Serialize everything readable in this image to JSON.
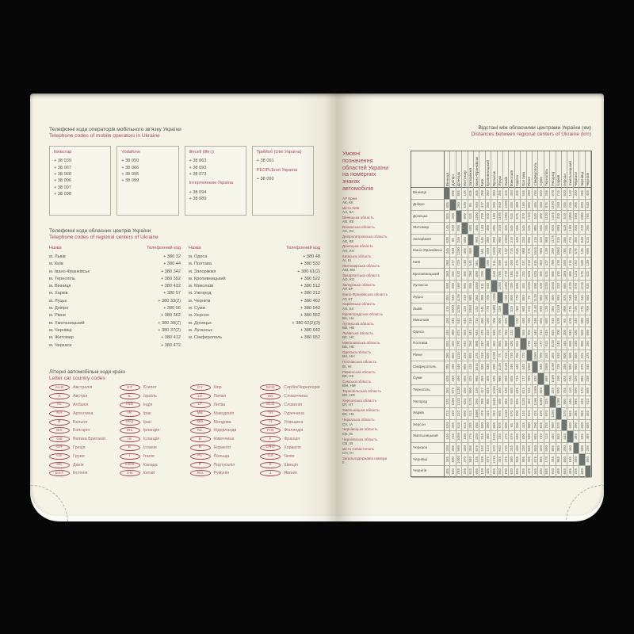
{
  "colors": {
    "accent_red": "#a4455a",
    "page_cream": "#f5f3e6",
    "diagonal_gray": "#6e746f",
    "text_dark": "#4e4c45"
  },
  "left_page": {
    "mobile": {
      "title_ua": "Телефонні коди операторів мобільного зв'язку України",
      "title_en": "Telephone codes of mobile operators in Ukraine",
      "operators": [
        {
          "name": "Київстар",
          "codes": [
            "+ 38 039",
            "+ 38 067",
            "+ 38 068",
            "+ 38 096",
            "+ 38 097",
            "+ 38 098"
          ]
        },
        {
          "name": "Vodafone",
          "codes": [
            "+ 38 050",
            "+ 38 066",
            "+ 38 095",
            "+ 38 099"
          ]
        },
        {
          "name": "lifecell (life:))",
          "codes": [
            "+ 38 063",
            "+ 38 093",
            "+ 38 073"
          ],
          "name2": "Інтертелеком Україна",
          "codes2": [
            "+ 38 094",
            "+ 38 089"
          ]
        },
        {
          "name": "ТриМоб (Utel Україна)",
          "codes": [
            "+ 38 091"
          ],
          "name2": "PEOPLEnet Україна",
          "codes2": [
            "+ 38 092"
          ]
        }
      ]
    },
    "regional": {
      "title_ua": "Телефонні коди обласних центрів України",
      "title_en": "Telephone codes of regional centers of Ukraine",
      "col_name": "Назва",
      "col_code": "Телефонний код",
      "left_rows": [
        [
          "м. Львів",
          "+ 380 32"
        ],
        [
          "м. Київ",
          "+ 380 44"
        ],
        [
          "м. Івано-Франківськ",
          "+ 380 342"
        ],
        [
          "м. Тернопіль",
          "+ 380 352"
        ],
        [
          "м. Вінниця",
          "+ 380 432"
        ],
        [
          "м. Харків",
          "+ 380 57"
        ],
        [
          "м. Луцьк",
          "+ 380 33(2)"
        ],
        [
          "м. Дніпро",
          "+ 380 56"
        ],
        [
          "м. Рівне",
          "+ 380 362"
        ],
        [
          "м. Хмельницький",
          "+ 380 38(2)"
        ],
        [
          "м. Чернівці",
          "+ 380 37(2)"
        ],
        [
          "м. Житомир",
          "+ 380 412"
        ],
        [
          "м. Черкаси",
          "+ 380 472"
        ]
      ],
      "right_rows": [
        [
          "м. Одеса",
          "+ 380 48"
        ],
        [
          "м. Полтава",
          "+ 380 532"
        ],
        [
          "м. Запоріжжя",
          "+ 380 61(2)"
        ],
        [
          "м. Кропивницький",
          "+ 380 522"
        ],
        [
          "м. Миколаїв",
          "+ 380 512"
        ],
        [
          "м. Ужгород",
          "+ 380 312"
        ],
        [
          "м. Чернігів",
          "+ 380 462"
        ],
        [
          "м. Суми",
          "+ 380 542"
        ],
        [
          "м. Херсон",
          "+ 380 552"
        ],
        [
          "м. Донецьк",
          "+ 380 62(2)(3)"
        ],
        [
          "м. Луганськ",
          "+ 380 642"
        ],
        [
          "м. Сімферополь",
          "+ 380 652"
        ]
      ]
    },
    "car_codes": {
      "title_ua": "Літерні автомобільні коди країн",
      "title_en": "Letter car country codes",
      "columns": [
        [
          {
            "code": "AUS",
            "country": "Австралія"
          },
          {
            "code": "A",
            "country": "Австрія"
          },
          {
            "code": "AL",
            "country": "Албанія"
          },
          {
            "code": "RA",
            "country": "Аргентина"
          },
          {
            "code": "B",
            "country": "Бельгія"
          },
          {
            "code": "BG",
            "country": "Болгарія"
          },
          {
            "code": "GB",
            "country": "Велика Британія"
          },
          {
            "code": "GR",
            "country": "Греція"
          },
          {
            "code": "GE",
            "country": "Грузія"
          },
          {
            "code": "DK",
            "country": "Данія"
          },
          {
            "code": "EST",
            "country": "Естонія"
          }
        ],
        [
          {
            "code": "ET",
            "country": "Єгипет"
          },
          {
            "code": "IL",
            "country": "Ізраїль"
          },
          {
            "code": "IND",
            "country": "Індія"
          },
          {
            "code": "IR",
            "country": "Ірак"
          },
          {
            "code": "IRQ",
            "country": "Іран"
          },
          {
            "code": "IRL",
            "country": "Ірландія"
          },
          {
            "code": "IS",
            "country": "Ісландія"
          },
          {
            "code": "E",
            "country": "Іспанія"
          },
          {
            "code": "I",
            "country": "Італія"
          },
          {
            "code": "CDN",
            "country": "Канада"
          },
          {
            "code": "CN",
            "country": "Китай"
          }
        ],
        [
          {
            "code": "CY",
            "country": "Кіпр"
          },
          {
            "code": "LV",
            "country": "Латвія"
          },
          {
            "code": "LT",
            "country": "Литва"
          },
          {
            "code": "MK",
            "country": "Македонія"
          },
          {
            "code": "MD",
            "country": "Молдова"
          },
          {
            "code": "NL",
            "country": "Нідерланди"
          },
          {
            "code": "D",
            "country": "Німеччина"
          },
          {
            "code": "N",
            "country": "Норвегія"
          },
          {
            "code": "PL",
            "country": "Польща"
          },
          {
            "code": "P",
            "country": "Португалія"
          },
          {
            "code": "RO",
            "country": "Румунія"
          }
        ],
        [
          {
            "code": "SCG",
            "country": "Сербія/Чорногорія"
          },
          {
            "code": "SK",
            "country": "Словаччина"
          },
          {
            "code": "SLO",
            "country": "Словенія"
          },
          {
            "code": "TR",
            "country": "Туреччина"
          },
          {
            "code": "H",
            "country": "Угорщина"
          },
          {
            "code": "FIN",
            "country": "Фінляндія"
          },
          {
            "code": "F",
            "country": "Франція"
          },
          {
            "code": "CRO",
            "country": "Хорватія"
          },
          {
            "code": "CZ",
            "country": "Чехія"
          },
          {
            "code": "S",
            "country": "Швеція"
          },
          {
            "code": "J",
            "country": "Японія"
          }
        ]
      ]
    }
  },
  "right_page": {
    "title_ua": "Відстані між обласними центрами України (км)",
    "title_en": "Distances between regional centers of Ukraine (km)",
    "legend": {
      "header": "Умовні позначення областей України на номерних знаках автомобілів",
      "entries": [
        {
          "region": "АР Крим",
          "codes": "АК, КК"
        },
        {
          "region": "місто Київ",
          "codes": "АА, КА"
        },
        {
          "region": "Вінницька область",
          "codes": "АВ, КВ"
        },
        {
          "region": "Волинська область",
          "codes": "АС, КС"
        },
        {
          "region": "Дніпропетровська область",
          "codes": "АЕ, КЕ"
        },
        {
          "region": "Донецька область",
          "codes": "АН, КН"
        },
        {
          "region": "Київська область",
          "codes": "АІ, КІ"
        },
        {
          "region": "Житомирська область",
          "codes": "АМ, КМ"
        },
        {
          "region": "Закарпатська область",
          "codes": "АО, КО"
        },
        {
          "region": "Запорізька область",
          "codes": "АР, КР"
        },
        {
          "region": "Івано-Франківська область",
          "codes": "АТ, КТ"
        },
        {
          "region": "Харківська область",
          "codes": "АХ, КХ"
        },
        {
          "region": "Кіровоградська область",
          "codes": "ВА, НА"
        },
        {
          "region": "Луганська область",
          "codes": "ВВ, НВ"
        },
        {
          "region": "Львівська область",
          "codes": "ВС, НС"
        },
        {
          "region": "Миколаївська область",
          "codes": "ВЕ, НЕ"
        },
        {
          "region": "Одеська область",
          "codes": "ВН, НН"
        },
        {
          "region": "Полтавська область",
          "codes": "ВІ, НІ"
        },
        {
          "region": "Рівненська область",
          "codes": "ВК, НК"
        },
        {
          "region": "Сумська область",
          "codes": "ВМ, НМ"
        },
        {
          "region": "Тернопільська область",
          "codes": "ВО, НО"
        },
        {
          "region": "Херсонська область",
          "codes": "ВТ, НТ"
        },
        {
          "region": "Хмельницька область",
          "codes": "ВХ, НХ"
        },
        {
          "region": "Черкаська область",
          "codes": "СА, ІА"
        },
        {
          "region": "Чернівецька область",
          "codes": "СЕ, ІЕ"
        },
        {
          "region": "Чернігівська область",
          "codes": "СВ, ІВ"
        },
        {
          "region": "місто Севастополь",
          "codes": "СН, ІН"
        },
        {
          "region": "Загальнодержавні номери",
          "codes": "ІІ"
        }
      ]
    }
  },
  "chart_data": {
    "type": "table",
    "title": "Відстані між обласними центрами України (км)",
    "cities": [
      "Вінниця",
      "Дніпро",
      "Донецьк",
      "Житомир",
      "Запоріжжя",
      "Івано-Франківськ",
      "Київ",
      "Кропивницький",
      "Луганськ",
      "Луцьк",
      "Львів",
      "Миколаїв",
      "Одеса",
      "Полтава",
      "Рівне",
      "Сімферополь",
      "Суми",
      "Тернопіль",
      "Ужгород",
      "Харків",
      "Херсон",
      "Хмельницький",
      "Черкаси",
      "Чернівці",
      "Чернігів"
    ],
    "matrix": [
      [
        null,
        605,
        865,
        145,
        635,
        345,
        268,
        360,
        990,
        355,
        415,
        450,
        435,
        555,
        280,
        785,
        620,
        265,
        570,
        715,
        520,
        140,
        330,
        265,
        405
      ],
      [
        605,
        null,
        260,
        630,
        85,
        940,
        477,
        255,
        390,
        940,
        1020,
        345,
        480,
        165,
        855,
        495,
        340,
        875,
        1160,
        240,
        335,
        745,
        305,
        830,
        540
      ],
      [
        865,
        260,
        null,
        890,
        245,
        1200,
        729,
        510,
        160,
        1195,
        1280,
        545,
        675,
        370,
        1110,
        540,
        490,
        1130,
        1415,
        310,
        510,
        1005,
        560,
        1080,
        765
      ],
      [
        145,
        630,
        890,
        null,
        680,
        405,
        140,
        405,
        995,
        310,
        425,
        545,
        555,
        545,
        225,
        885,
        565,
        295,
        620,
        690,
        615,
        190,
        330,
        370,
        295
      ],
      [
        635,
        85,
        245,
        680,
        null,
        960,
        545,
        280,
        390,
        980,
        1050,
        310,
        445,
        250,
        895,
        410,
        425,
        900,
        1175,
        315,
        285,
        775,
        355,
        840,
        615
      ],
      [
        345,
        940,
        1200,
        405,
        960,
        null,
        561,
        690,
        1330,
        260,
        132,
        715,
        645,
        900,
        275,
        1015,
        960,
        130,
        290,
        1060,
        785,
        220,
        675,
        135,
        695
      ],
      [
        268,
        477,
        729,
        140,
        545,
        561,
        null,
        298,
        811,
        388,
        541,
        490,
        475,
        337,
        318,
        935,
        359,
        427,
        788,
        478,
        550,
        315,
        192,
        538,
        139
      ],
      [
        360,
        255,
        510,
        405,
        280,
        690,
        298,
        null,
        640,
        705,
        770,
        185,
        315,
        255,
        620,
        520,
        405,
        625,
        905,
        415,
        260,
        495,
        124,
        575,
        425
      ],
      [
        990,
        390,
        160,
        995,
        390,
        1330,
        811,
        640,
        null,
        1305,
        1400,
        700,
        830,
        455,
        1220,
        690,
        520,
        1255,
        1545,
        333,
        665,
        1125,
        670,
        1215,
        835
      ],
      [
        355,
        940,
        1195,
        310,
        980,
        260,
        388,
        705,
        1305,
        null,
        150,
        800,
        770,
        855,
        75,
        1135,
        860,
        160,
        405,
        995,
        875,
        240,
        640,
        345,
        550
      ],
      [
        415,
        1020,
        1280,
        425,
        1050,
        132,
        541,
        770,
        1400,
        150,
        null,
        825,
        765,
        960,
        210,
        1140,
        990,
        130,
        265,
        1110,
        900,
        275,
        735,
        275,
        700
      ],
      [
        450,
        345,
        545,
        545,
        310,
        715,
        490,
        185,
        700,
        800,
        825,
        null,
        132,
        430,
        730,
        340,
        605,
        685,
        910,
        570,
        65,
        570,
        345,
        580,
        630
      ],
      [
        435,
        480,
        675,
        555,
        445,
        645,
        475,
        315,
        830,
        770,
        765,
        132,
        null,
        555,
        705,
        440,
        715,
        635,
        825,
        700,
        200,
        530,
        430,
        505,
        695
      ],
      [
        555,
        165,
        370,
        545,
        250,
        900,
        337,
        255,
        455,
        855,
        960,
        430,
        555,
        null,
        770,
        645,
        177,
        815,
        1125,
        145,
        445,
        690,
        230,
        805,
        395
      ],
      [
        280,
        855,
        1110,
        225,
        895,
        275,
        318,
        620,
        1220,
        75,
        210,
        730,
        705,
        770,
        null,
        1065,
        780,
        155,
        455,
        910,
        800,
        180,
        555,
        325,
        475
      ],
      [
        785,
        495,
        540,
        885,
        410,
        1015,
        935,
        520,
        690,
        1135,
        1140,
        340,
        440,
        645,
        1065,
        null,
        830,
        1005,
        1190,
        725,
        290,
        895,
        650,
        875,
        945
      ],
      [
        620,
        340,
        490,
        565,
        425,
        960,
        359,
        405,
        520,
        860,
        990,
        605,
        715,
        177,
        780,
        830,
        null,
        860,
        1180,
        190,
        625,
        740,
        320,
        885,
        330
      ],
      [
        265,
        875,
        1130,
        295,
        900,
        130,
        427,
        625,
        1255,
        160,
        130,
        685,
        635,
        815,
        155,
        1005,
        860,
        null,
        325,
        970,
        755,
        110,
        590,
        170,
        585
      ],
      [
        570,
        1160,
        1415,
        620,
        1175,
        290,
        788,
        905,
        1545,
        405,
        265,
        910,
        825,
        1125,
        455,
        1190,
        1180,
        325,
        null,
        1280,
        980,
        440,
        895,
        335,
        910
      ],
      [
        715,
        240,
        310,
        690,
        315,
        1060,
        478,
        415,
        333,
        995,
        1110,
        570,
        700,
        145,
        910,
        725,
        190,
        970,
        1280,
        null,
        570,
        845,
        385,
        965,
        495
      ],
      [
        520,
        335,
        510,
        615,
        285,
        785,
        550,
        260,
        665,
        875,
        900,
        65,
        200,
        445,
        800,
        290,
        625,
        755,
        980,
        570,
        null,
        640,
        390,
        650,
        685
      ],
      [
        140,
        745,
        1005,
        190,
        775,
        220,
        315,
        495,
        1125,
        240,
        275,
        570,
        530,
        690,
        180,
        895,
        740,
        110,
        440,
        845,
        640,
        null,
        460,
        185,
        485
      ],
      [
        330,
        305,
        560,
        330,
        355,
        675,
        192,
        124,
        670,
        640,
        735,
        345,
        430,
        230,
        555,
        650,
        320,
        590,
        895,
        385,
        390,
        460,
        null,
        580,
        295
      ],
      [
        265,
        830,
        1080,
        370,
        840,
        135,
        538,
        575,
        1215,
        345,
        275,
        580,
        505,
        805,
        325,
        875,
        885,
        170,
        335,
        965,
        650,
        185,
        580,
        null,
        660
      ],
      [
        405,
        540,
        765,
        295,
        615,
        695,
        139,
        425,
        835,
        550,
        700,
        630,
        695,
        395,
        475,
        945,
        330,
        585,
        910,
        495,
        685,
        485,
        295,
        660,
        null
      ]
    ]
  }
}
